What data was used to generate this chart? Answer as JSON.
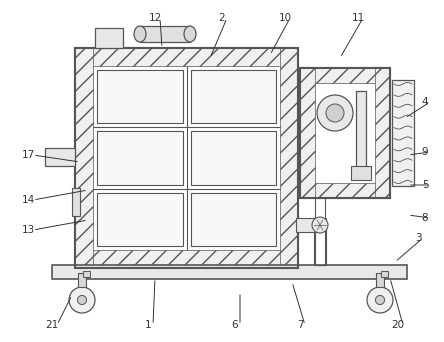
{
  "bg_color": "#ffffff",
  "line_color": "#555555",
  "figsize": [
    4.44,
    3.42
  ],
  "dpi": 100,
  "labels_data": [
    [
      "1",
      148,
      325,
      155,
      278
    ],
    [
      "2",
      222,
      18,
      210,
      58
    ],
    [
      "3",
      418,
      238,
      395,
      262
    ],
    [
      "4",
      425,
      102,
      405,
      118
    ],
    [
      "5",
      425,
      185,
      408,
      185
    ],
    [
      "6",
      235,
      325,
      240,
      292
    ],
    [
      "7",
      300,
      325,
      292,
      282
    ],
    [
      "8",
      425,
      218,
      408,
      215
    ],
    [
      "9",
      425,
      152,
      408,
      155
    ],
    [
      "10",
      285,
      18,
      270,
      55
    ],
    [
      "11",
      358,
      18,
      340,
      58
    ],
    [
      "12",
      155,
      18,
      162,
      48
    ],
    [
      "13",
      28,
      230,
      88,
      220
    ],
    [
      "14",
      28,
      200,
      88,
      190
    ],
    [
      "17",
      28,
      155,
      80,
      162
    ],
    [
      "20",
      398,
      325,
      390,
      278
    ],
    [
      "21",
      52,
      325,
      72,
      295
    ]
  ]
}
